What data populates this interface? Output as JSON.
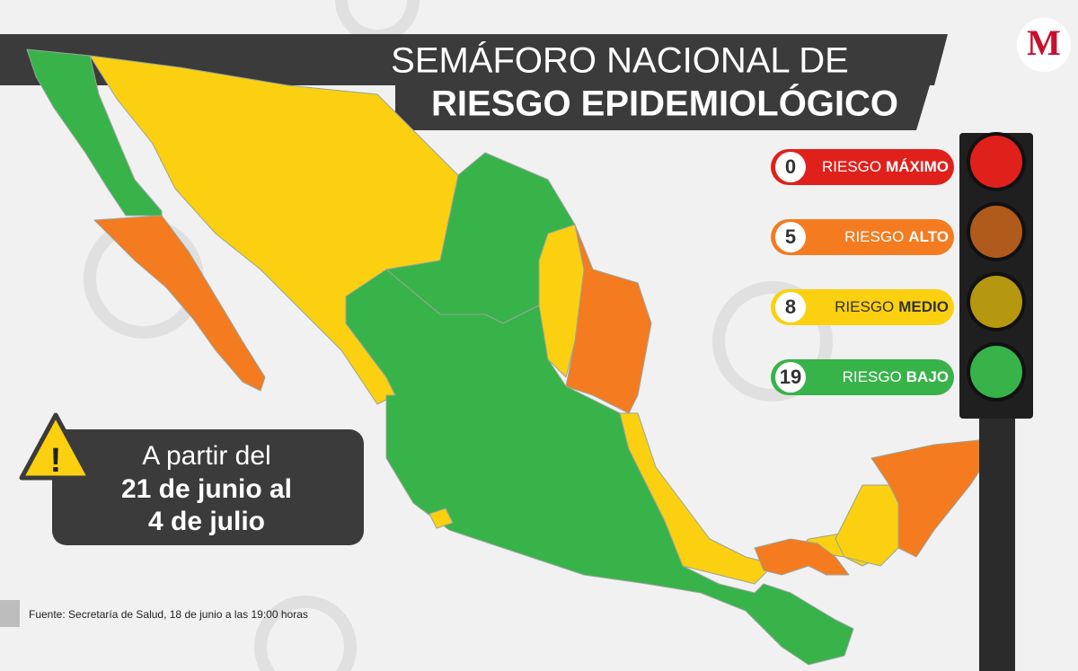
{
  "header": {
    "title_line1": "SEMÁFORO NACIONAL DE",
    "title_line2": "RIESGO EPIDEMIOLÓGICO",
    "logo": "M"
  },
  "legend": [
    {
      "count": "0",
      "label": "RIESGO",
      "level": "MÁXIMO",
      "color": "#e0201b"
    },
    {
      "count": "5",
      "label": "RIESGO",
      "level": "ALTO",
      "color": "#f47b20"
    },
    {
      "count": "8",
      "label": "RIESGO",
      "level": "MEDIO",
      "color": "#fbd010"
    },
    {
      "count": "19",
      "label": "RIESGO",
      "level": "BAJO",
      "color": "#37b34a"
    }
  ],
  "notice": {
    "line1": "A partir del",
    "line2": "21 de junio al",
    "line3": "4 de julio"
  },
  "source": "Fuente: Secretaría de Salud, 18 de junio a las 19:00 horas"
}
